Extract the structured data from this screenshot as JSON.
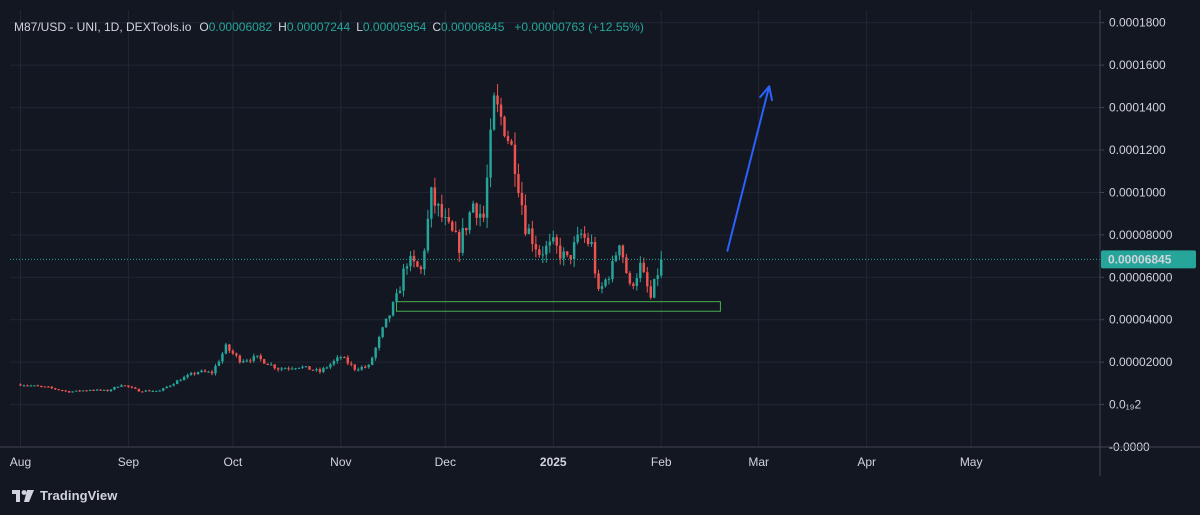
{
  "legend": {
    "symbol": "M87/USD - UNI, 1D, DEXTools.io",
    "o_label": "O",
    "o_value": "0.00006082",
    "h_label": "H",
    "h_value": "0.00007244",
    "l_label": "L",
    "l_value": "0.00005954",
    "c_label": "C",
    "c_value": "0.00006845",
    "change": "+0.00000763 (+12.55%)"
  },
  "price_tag": "0.00006845",
  "brand": "TradingView",
  "colors": {
    "background": "#131722",
    "grid": "#232733",
    "up": "#26a69a",
    "down": "#ef5350",
    "price_line": "#26a69a",
    "arrow": "#2962ff",
    "zone": "#4caf50"
  },
  "chart_data": {
    "type": "candlestick",
    "symbol": "M87/USD",
    "timeframe": "1D",
    "y_ticks": [
      "0.0001800",
      "0.0001600",
      "0.0001400",
      "0.0001200",
      "0.0001000",
      "0.00008000",
      "0.00006000",
      "0.00004000",
      "0.00002000",
      "0.0₁₉2",
      "-0.0000"
    ],
    "y_tick_values": [
      0.00018,
      0.00016,
      0.00014,
      0.00012,
      0.0001,
      8e-05,
      6e-05,
      4e-05,
      2e-05,
      0.0,
      -2e-05
    ],
    "ylim": [
      -2e-05,
      0.000186
    ],
    "x_ticks": [
      "Aug",
      "Sep",
      "Oct",
      "Nov",
      "Dec",
      "2025",
      "Feb",
      "Mar",
      "Apr",
      "May"
    ],
    "x_tick_days": [
      0,
      31,
      61,
      92,
      122,
      153,
      184,
      212,
      243,
      273
    ],
    "xlim_days": [
      -3,
      310
    ],
    "current_price": 6.845e-05,
    "support_zone": {
      "from_day": 108,
      "to_day": 201,
      "top": 4.85e-05,
      "bottom": 4.4e-05
    },
    "arrow": {
      "from_day": 203,
      "from_price": 7.25e-05,
      "to_day": 215,
      "to_price": 0.00015
    },
    "close_path": [
      [
        0,
        9.5e-06
      ],
      [
        8,
        8e-06
      ],
      [
        14,
        6e-06
      ],
      [
        20,
        7e-06
      ],
      [
        25,
        6.5e-06
      ],
      [
        29,
        9.5e-06
      ],
      [
        34,
        6.5e-06
      ],
      [
        40,
        6.5e-06
      ],
      [
        46,
        1.2e-05
      ],
      [
        51,
        1.55e-05
      ],
      [
        55,
        1.5e-05
      ],
      [
        59,
        2.7e-05
      ],
      [
        63,
        2.1e-05
      ],
      [
        68,
        2.2e-05
      ],
      [
        74,
        1.7e-05
      ],
      [
        80,
        1.8e-05
      ],
      [
        86,
        1.55e-05
      ],
      [
        92,
        2.25e-05
      ],
      [
        96,
        1.7e-05
      ],
      [
        100,
        1.8e-05
      ],
      [
        104,
        3.5e-05
      ],
      [
        108,
        5e-05
      ],
      [
        111,
        6.8e-05
      ],
      [
        115,
        6.3e-05
      ],
      [
        118,
        9.8e-05
      ],
      [
        122,
        8.5e-05
      ],
      [
        126,
        7.5e-05
      ],
      [
        130,
        9.5e-05
      ],
      [
        133,
        8.8e-05
      ],
      [
        136,
        0.000141
      ],
      [
        139,
        0.000132
      ],
      [
        142,
        0.000115
      ],
      [
        145,
        8.5e-05
      ],
      [
        149,
        7.2e-05
      ],
      [
        153,
        7.5e-05
      ],
      [
        157,
        6.8e-05
      ],
      [
        161,
        8e-05
      ],
      [
        164,
        7.5e-05
      ],
      [
        166,
        5.2e-05
      ],
      [
        170,
        6.5e-05
      ],
      [
        172,
        7.8e-05
      ],
      [
        175,
        5.5e-05
      ],
      [
        178,
        6.5e-05
      ],
      [
        181,
        5e-05
      ],
      [
        184,
        6.845e-05
      ]
    ]
  }
}
